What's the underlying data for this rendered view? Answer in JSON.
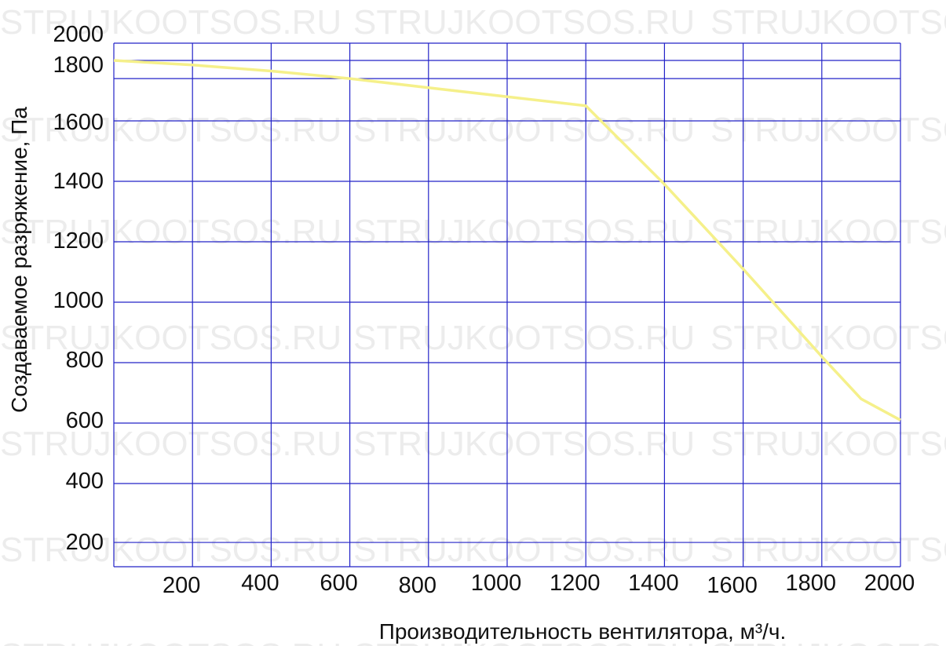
{
  "watermark": "STRUJKOOTSOS.RU",
  "colors": {
    "grid": "#2323c8",
    "curve": "#f5f08a",
    "text": "#111111"
  },
  "chart_data": {
    "type": "line",
    "xlabel": "Производительность вентилятора, м³/ч.",
    "ylabel": "Создаваемое разряжение, Па",
    "xlim": [
      0,
      2000
    ],
    "ylim": [
      130,
      2000
    ],
    "x_ticks": [
      200,
      400,
      600,
      800,
      1000,
      1200,
      1400,
      1600,
      1800,
      2000
    ],
    "y_ticks": [
      200,
      400,
      600,
      800,
      1000,
      1200,
      1400,
      1600,
      1800,
      2000
    ],
    "x_gridlines": [
      0,
      200,
      400,
      600,
      800,
      1000,
      1200,
      1400,
      1600,
      1800,
      2000
    ],
    "y_gridlines": [
      205,
      400,
      600,
      800,
      1000,
      1200,
      1400,
      1600,
      1740,
      1800
    ],
    "grid": true,
    "series": [
      {
        "x": [
          0,
          200,
          400,
          600,
          800,
          1000,
          1200,
          1400,
          1600,
          1800,
          1900,
          2000
        ],
        "y": [
          1800,
          1785,
          1765,
          1740,
          1710,
          1680,
          1650,
          1390,
          1110,
          820,
          680,
          610
        ]
      }
    ]
  }
}
